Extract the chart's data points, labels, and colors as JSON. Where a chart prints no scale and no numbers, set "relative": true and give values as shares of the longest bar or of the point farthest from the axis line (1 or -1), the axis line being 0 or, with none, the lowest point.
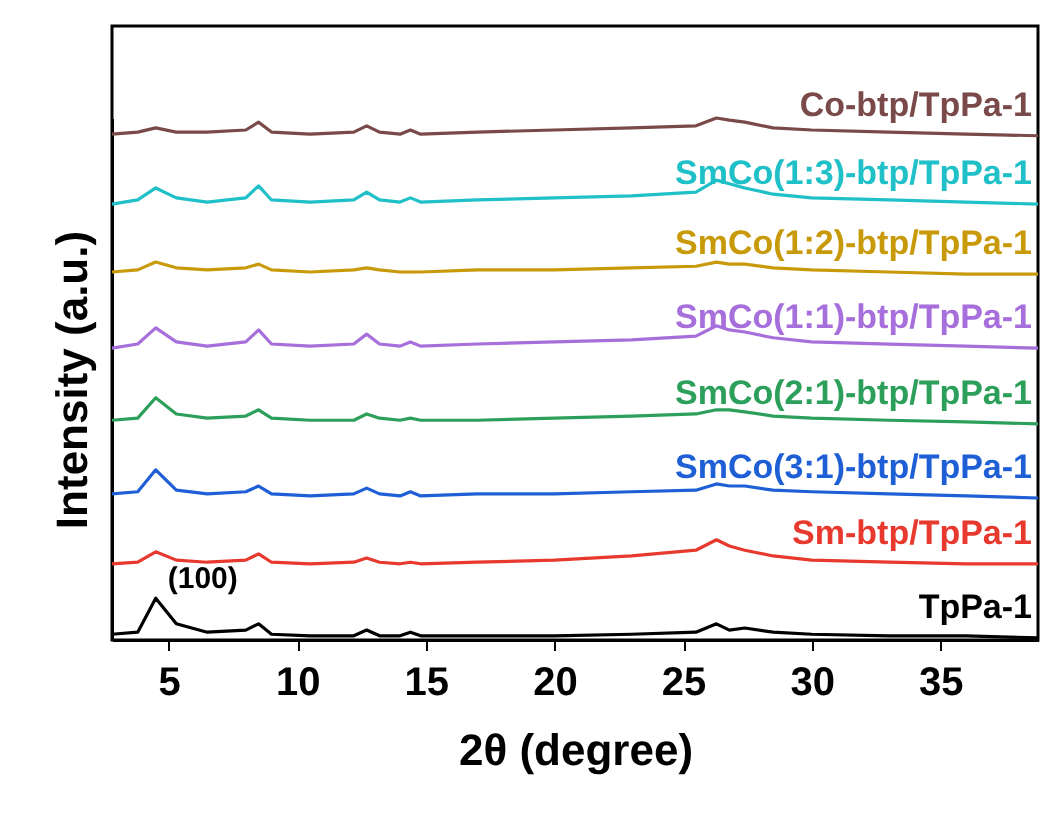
{
  "chart_data": {
    "type": "line",
    "xlabel": "2θ (degree)",
    "ylabel": "Intensity (a.u.)",
    "relative": true,
    "xlim": [
      2.8,
      38.8
    ],
    "xticks": [
      5,
      10,
      15,
      20,
      25,
      30,
      35
    ],
    "legend": false,
    "grid": false,
    "tick_labels": "x",
    "marker": "none",
    "line_style": "solid",
    "x": [
      2.8,
      3.8,
      4.5,
      5.3,
      6.5,
      8.0,
      8.5,
      9.0,
      10.5,
      12.2,
      12.7,
      13.2,
      14.0,
      14.4,
      14.8,
      17,
      20,
      23,
      25.5,
      26.3,
      26.8,
      27.4,
      28.5,
      30,
      33,
      36,
      38.8
    ],
    "series": [
      {
        "name": "TpPa-1",
        "color": "#000000",
        "values": [
          0.011,
          0.015,
          0.08,
          0.031,
          0.015,
          0.019,
          0.031,
          0.011,
          0.008,
          0.008,
          0.019,
          0.008,
          0.008,
          0.015,
          0.008,
          0.008,
          0.008,
          0.011,
          0.015,
          0.031,
          0.019,
          0.023,
          0.015,
          0.011,
          0.008,
          0.008,
          0.004
        ]
      },
      {
        "name": "Sm-btp/TpPa-1",
        "color": "#e8392f",
        "values": [
          0.146,
          0.149,
          0.169,
          0.153,
          0.149,
          0.153,
          0.165,
          0.149,
          0.146,
          0.149,
          0.157,
          0.149,
          0.146,
          0.149,
          0.146,
          0.149,
          0.153,
          0.161,
          0.172,
          0.192,
          0.18,
          0.172,
          0.161,
          0.153,
          0.149,
          0.146,
          0.146
        ]
      },
      {
        "name": "SmCo(3:1)-btp/TpPa-1",
        "color": "#1f5fd6",
        "values": [
          0.28,
          0.284,
          0.326,
          0.287,
          0.28,
          0.284,
          0.295,
          0.28,
          0.276,
          0.28,
          0.291,
          0.28,
          0.276,
          0.284,
          0.276,
          0.28,
          0.28,
          0.284,
          0.287,
          0.299,
          0.295,
          0.295,
          0.287,
          0.284,
          0.28,
          0.276,
          0.272
        ]
      },
      {
        "name": "SmCo(2:1)-btp/TpPa-1",
        "color": "#2ca05a",
        "values": [
          0.421,
          0.425,
          0.464,
          0.433,
          0.425,
          0.429,
          0.441,
          0.425,
          0.421,
          0.421,
          0.433,
          0.425,
          0.421,
          0.425,
          0.421,
          0.421,
          0.425,
          0.429,
          0.433,
          0.441,
          0.441,
          0.437,
          0.429,
          0.425,
          0.421,
          0.418,
          0.414
        ]
      },
      {
        "name": "SmCo(1:1)-btp/TpPa-1",
        "color": "#a76fdb",
        "values": [
          0.559,
          0.567,
          0.598,
          0.571,
          0.563,
          0.571,
          0.594,
          0.567,
          0.563,
          0.567,
          0.586,
          0.567,
          0.563,
          0.571,
          0.563,
          0.567,
          0.571,
          0.575,
          0.582,
          0.602,
          0.594,
          0.59,
          0.579,
          0.571,
          0.567,
          0.563,
          0.559
        ]
      },
      {
        "name": "SmCo(1:2)-btp/TpPa-1",
        "color": "#c89a0a",
        "values": [
          0.705,
          0.709,
          0.724,
          0.713,
          0.709,
          0.713,
          0.72,
          0.709,
          0.705,
          0.709,
          0.713,
          0.709,
          0.705,
          0.705,
          0.705,
          0.709,
          0.709,
          0.713,
          0.716,
          0.724,
          0.72,
          0.72,
          0.713,
          0.709,
          0.705,
          0.701,
          0.701
        ]
      },
      {
        "name": "SmCo(1:3)-btp/TpPa-1",
        "color": "#1fc0c8",
        "values": [
          0.835,
          0.843,
          0.866,
          0.847,
          0.839,
          0.847,
          0.87,
          0.843,
          0.839,
          0.843,
          0.858,
          0.843,
          0.839,
          0.847,
          0.839,
          0.843,
          0.847,
          0.851,
          0.858,
          0.881,
          0.874,
          0.866,
          0.854,
          0.847,
          0.843,
          0.839,
          0.835
        ]
      },
      {
        "name": "Co-btp/TpPa-1",
        "color": "#7a4a4a",
        "values": [
          0.969,
          0.973,
          0.981,
          0.973,
          0.973,
          0.977,
          0.992,
          0.973,
          0.969,
          0.973,
          0.985,
          0.973,
          0.969,
          0.977,
          0.969,
          0.973,
          0.977,
          0.981,
          0.985,
          1.0,
          0.996,
          0.992,
          0.981,
          0.977,
          0.973,
          0.969,
          0.966
        ]
      }
    ],
    "annotations": [
      {
        "text": "(100)",
        "x": 4.5,
        "y": 0.08
      }
    ]
  }
}
